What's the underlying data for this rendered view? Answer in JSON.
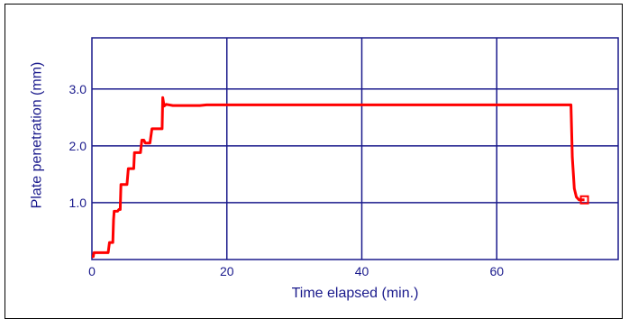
{
  "chart_data": {
    "type": "line",
    "title": "",
    "xlabel": "Time elapsed (min.)",
    "ylabel": "Plate penetration (mm)",
    "xlim": [
      0,
      78
    ],
    "ylim": [
      0,
      3.9
    ],
    "x_ticks": [
      {
        "value": 0,
        "label": "0"
      },
      {
        "value": 20,
        "label": "20"
      },
      {
        "value": 40,
        "label": "40"
      },
      {
        "value": 60,
        "label": "60"
      }
    ],
    "y_ticks": [
      {
        "value": 1.0,
        "label": "1.0"
      },
      {
        "value": 2.0,
        "label": "2.0"
      },
      {
        "value": 3.0,
        "label": "3.0"
      }
    ],
    "grid": true,
    "legend": "none",
    "colors": {
      "series": "#ff0000",
      "axes": "#1a1a8c",
      "frame": "#000000"
    },
    "series": [
      {
        "x": [
          0,
          0.2,
          0.3,
          0.5,
          0.9,
          1.6,
          2.0,
          2.4,
          2.6,
          3.1,
          3.2,
          3.3,
          3.8,
          4.0,
          4.2,
          4.3,
          4.6,
          5.2,
          5.4,
          5.9,
          6.2,
          6.3,
          6.8,
          7.2,
          7.4,
          7.7,
          7.9,
          8.2,
          8.6,
          8.9,
          9.0,
          9.3,
          10.4,
          10.5,
          10.7,
          11.0,
          12.0,
          14.0,
          16.0,
          17.0,
          30.0,
          50.0,
          68.0,
          69.5,
          70.5,
          70.8,
          71.0,
          71.2,
          71.5,
          71.8,
          72.2,
          72.6,
          72.8,
          73.0
        ],
        "y": [
          0.05,
          0.05,
          0.12,
          0.12,
          0.12,
          0.12,
          0.12,
          0.12,
          0.3,
          0.3,
          0.7,
          0.85,
          0.85,
          0.88,
          0.88,
          1.32,
          1.32,
          1.32,
          1.6,
          1.6,
          1.6,
          1.88,
          1.88,
          1.88,
          2.1,
          2.1,
          2.05,
          2.05,
          2.05,
          2.3,
          2.3,
          2.3,
          2.3,
          2.85,
          2.7,
          2.73,
          2.71,
          2.71,
          2.71,
          2.72,
          2.72,
          2.72,
          2.72,
          2.72,
          2.72,
          2.72,
          2.72,
          1.8,
          1.25,
          1.1,
          1.05,
          1.05,
          1.05,
          1.05
        ]
      }
    ]
  }
}
